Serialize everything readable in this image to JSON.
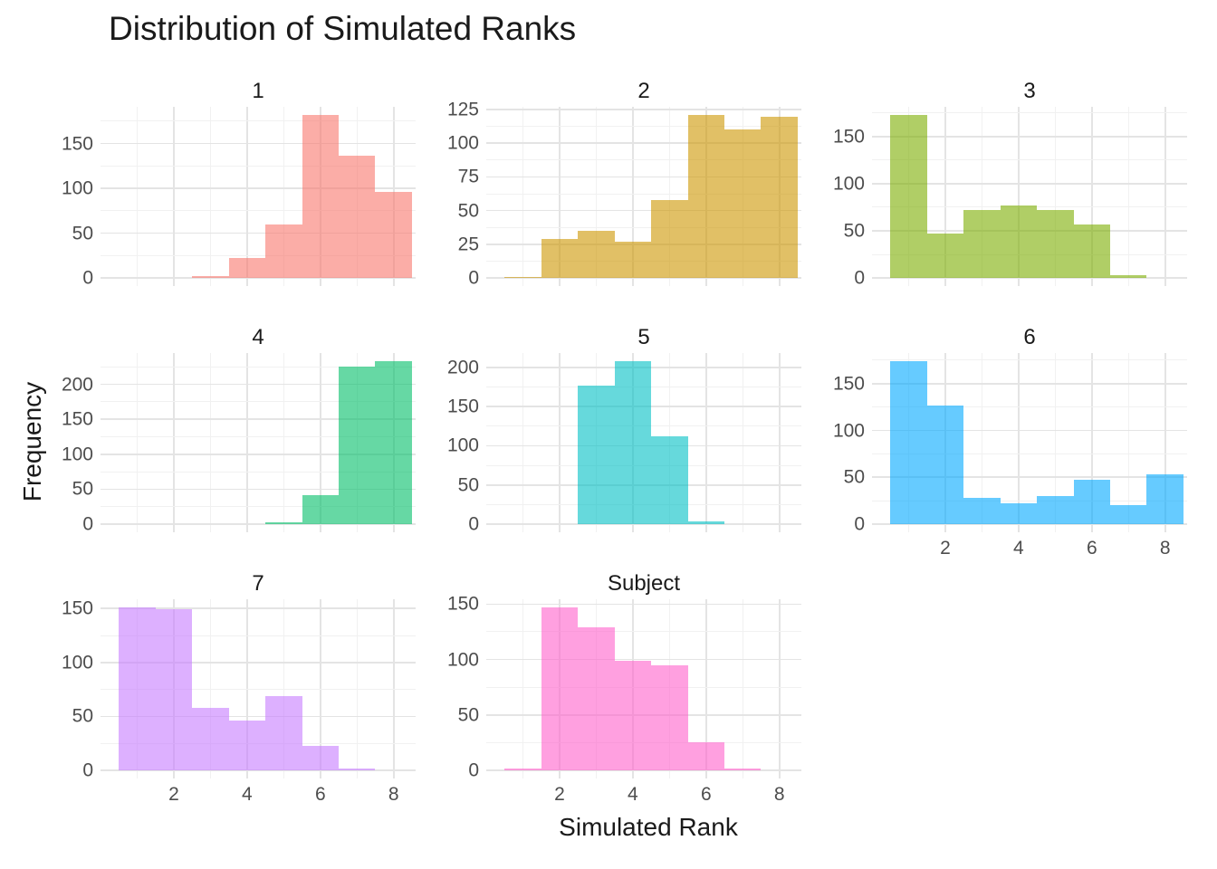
{
  "title": "Distribution of Simulated Ranks",
  "axes": {
    "x_title": "Simulated Rank",
    "y_title": "Frequency",
    "tick_label_color": "#4d4d4d",
    "grid_major_color": "#e4e4e4",
    "grid_minor_color": "#f1f1f1"
  },
  "chart_data": {
    "type": "bar",
    "style": "faceted histogram, ggplot2-like, free y scales",
    "title": "Distribution of Simulated Ranks",
    "xlabel": "Simulated Rank",
    "ylabel": "Frequency",
    "grid": "on",
    "legend": "none",
    "bin_width": 1,
    "bin_centers": [
      1,
      2,
      3,
      4,
      5,
      6,
      7,
      8
    ],
    "x_range": [
      0,
      8.6
    ],
    "x_major_ticks": [
      2,
      4,
      6,
      8
    ],
    "x_minor_ticks": [
      1,
      3,
      5,
      7
    ],
    "x_tick_labels": [
      "2",
      "4",
      "6",
      "8"
    ],
    "fill_alpha": 0.6,
    "facets": [
      {
        "label": "1",
        "base_color": "#F8766D",
        "counts": [
          0,
          0,
          2,
          22,
          60,
          182,
          137,
          96
        ],
        "y_ticks": [
          0,
          50,
          100,
          150
        ],
        "show_x_axis": false
      },
      {
        "label": "2",
        "base_color": "#CD9600",
        "counts": [
          1,
          29,
          35,
          27,
          58,
          121,
          110,
          120
        ],
        "y_ticks": [
          0,
          25,
          50,
          75,
          100,
          125
        ],
        "show_x_axis": false
      },
      {
        "label": "3",
        "base_color": "#7CAE00",
        "counts": [
          173,
          47,
          72,
          77,
          72,
          57,
          3,
          0
        ],
        "y_ticks": [
          0,
          50,
          100,
          150
        ],
        "show_x_axis": false
      },
      {
        "label": "4",
        "base_color": "#00BE67",
        "counts": [
          0,
          0,
          0,
          0,
          3,
          42,
          225,
          233
        ],
        "y_ticks": [
          0,
          50,
          100,
          150,
          200
        ],
        "show_x_axis": false
      },
      {
        "label": "5",
        "base_color": "#00BFC4",
        "counts": [
          0,
          0,
          177,
          208,
          112,
          4,
          0,
          0
        ],
        "y_ticks": [
          0,
          50,
          100,
          150,
          200
        ],
        "show_x_axis": false
      },
      {
        "label": "6",
        "base_color": "#00A9FF",
        "counts": [
          174,
          127,
          28,
          22,
          30,
          47,
          20,
          53
        ],
        "y_ticks": [
          0,
          50,
          100,
          150
        ],
        "show_x_axis": true
      },
      {
        "label": "7",
        "base_color": "#C77CFF",
        "counts": [
          151,
          149,
          58,
          46,
          69,
          23,
          2,
          0
        ],
        "y_ticks": [
          0,
          50,
          100,
          150
        ],
        "show_x_axis": true
      },
      {
        "label": "Subject",
        "base_color": "#FF61CC",
        "counts": [
          2,
          147,
          129,
          99,
          95,
          25,
          2,
          0
        ],
        "y_ticks": [
          0,
          50,
          100,
          150
        ],
        "show_x_axis": true
      }
    ]
  }
}
